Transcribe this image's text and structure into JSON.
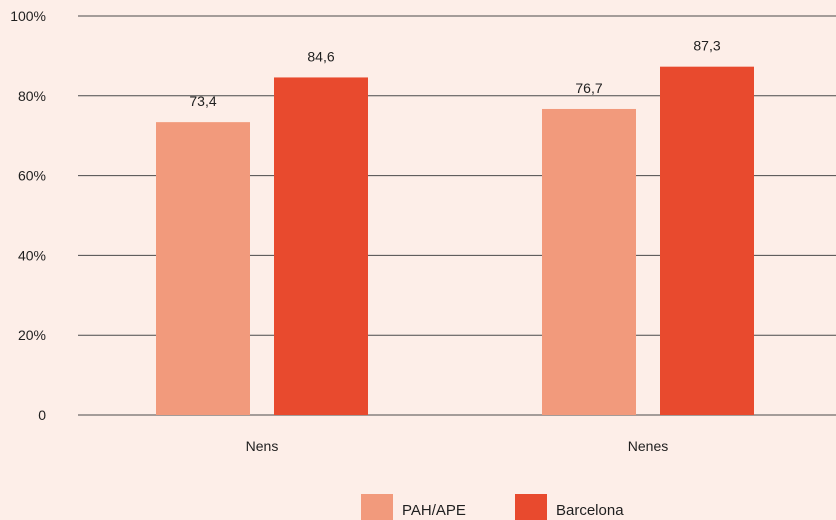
{
  "chart_data": {
    "type": "bar",
    "categories": [
      "Nens",
      "Nenes"
    ],
    "series": [
      {
        "name": "PAH/APE",
        "values": [
          73.4,
          76.7
        ],
        "labels": [
          "73,4",
          "76,7"
        ],
        "color": "#f29a7c"
      },
      {
        "name": "Barcelona",
        "values": [
          84.6,
          87.3
        ],
        "labels": [
          "84,6",
          "87,3"
        ],
        "color": "#e84a2e"
      }
    ],
    "ylim": [
      0,
      100
    ],
    "yticks": [
      0,
      20,
      40,
      60,
      80,
      100
    ],
    "ytick_labels": [
      "0",
      "20%",
      "40%",
      "60%",
      "80%",
      "100%"
    ],
    "grid": true,
    "legend_position": "bottom-center",
    "title": "",
    "xlabel": "",
    "ylabel": ""
  },
  "colors": {
    "background": "#fdeee8",
    "gridline": "#4a4a4a",
    "text": "#1f1f1f"
  }
}
